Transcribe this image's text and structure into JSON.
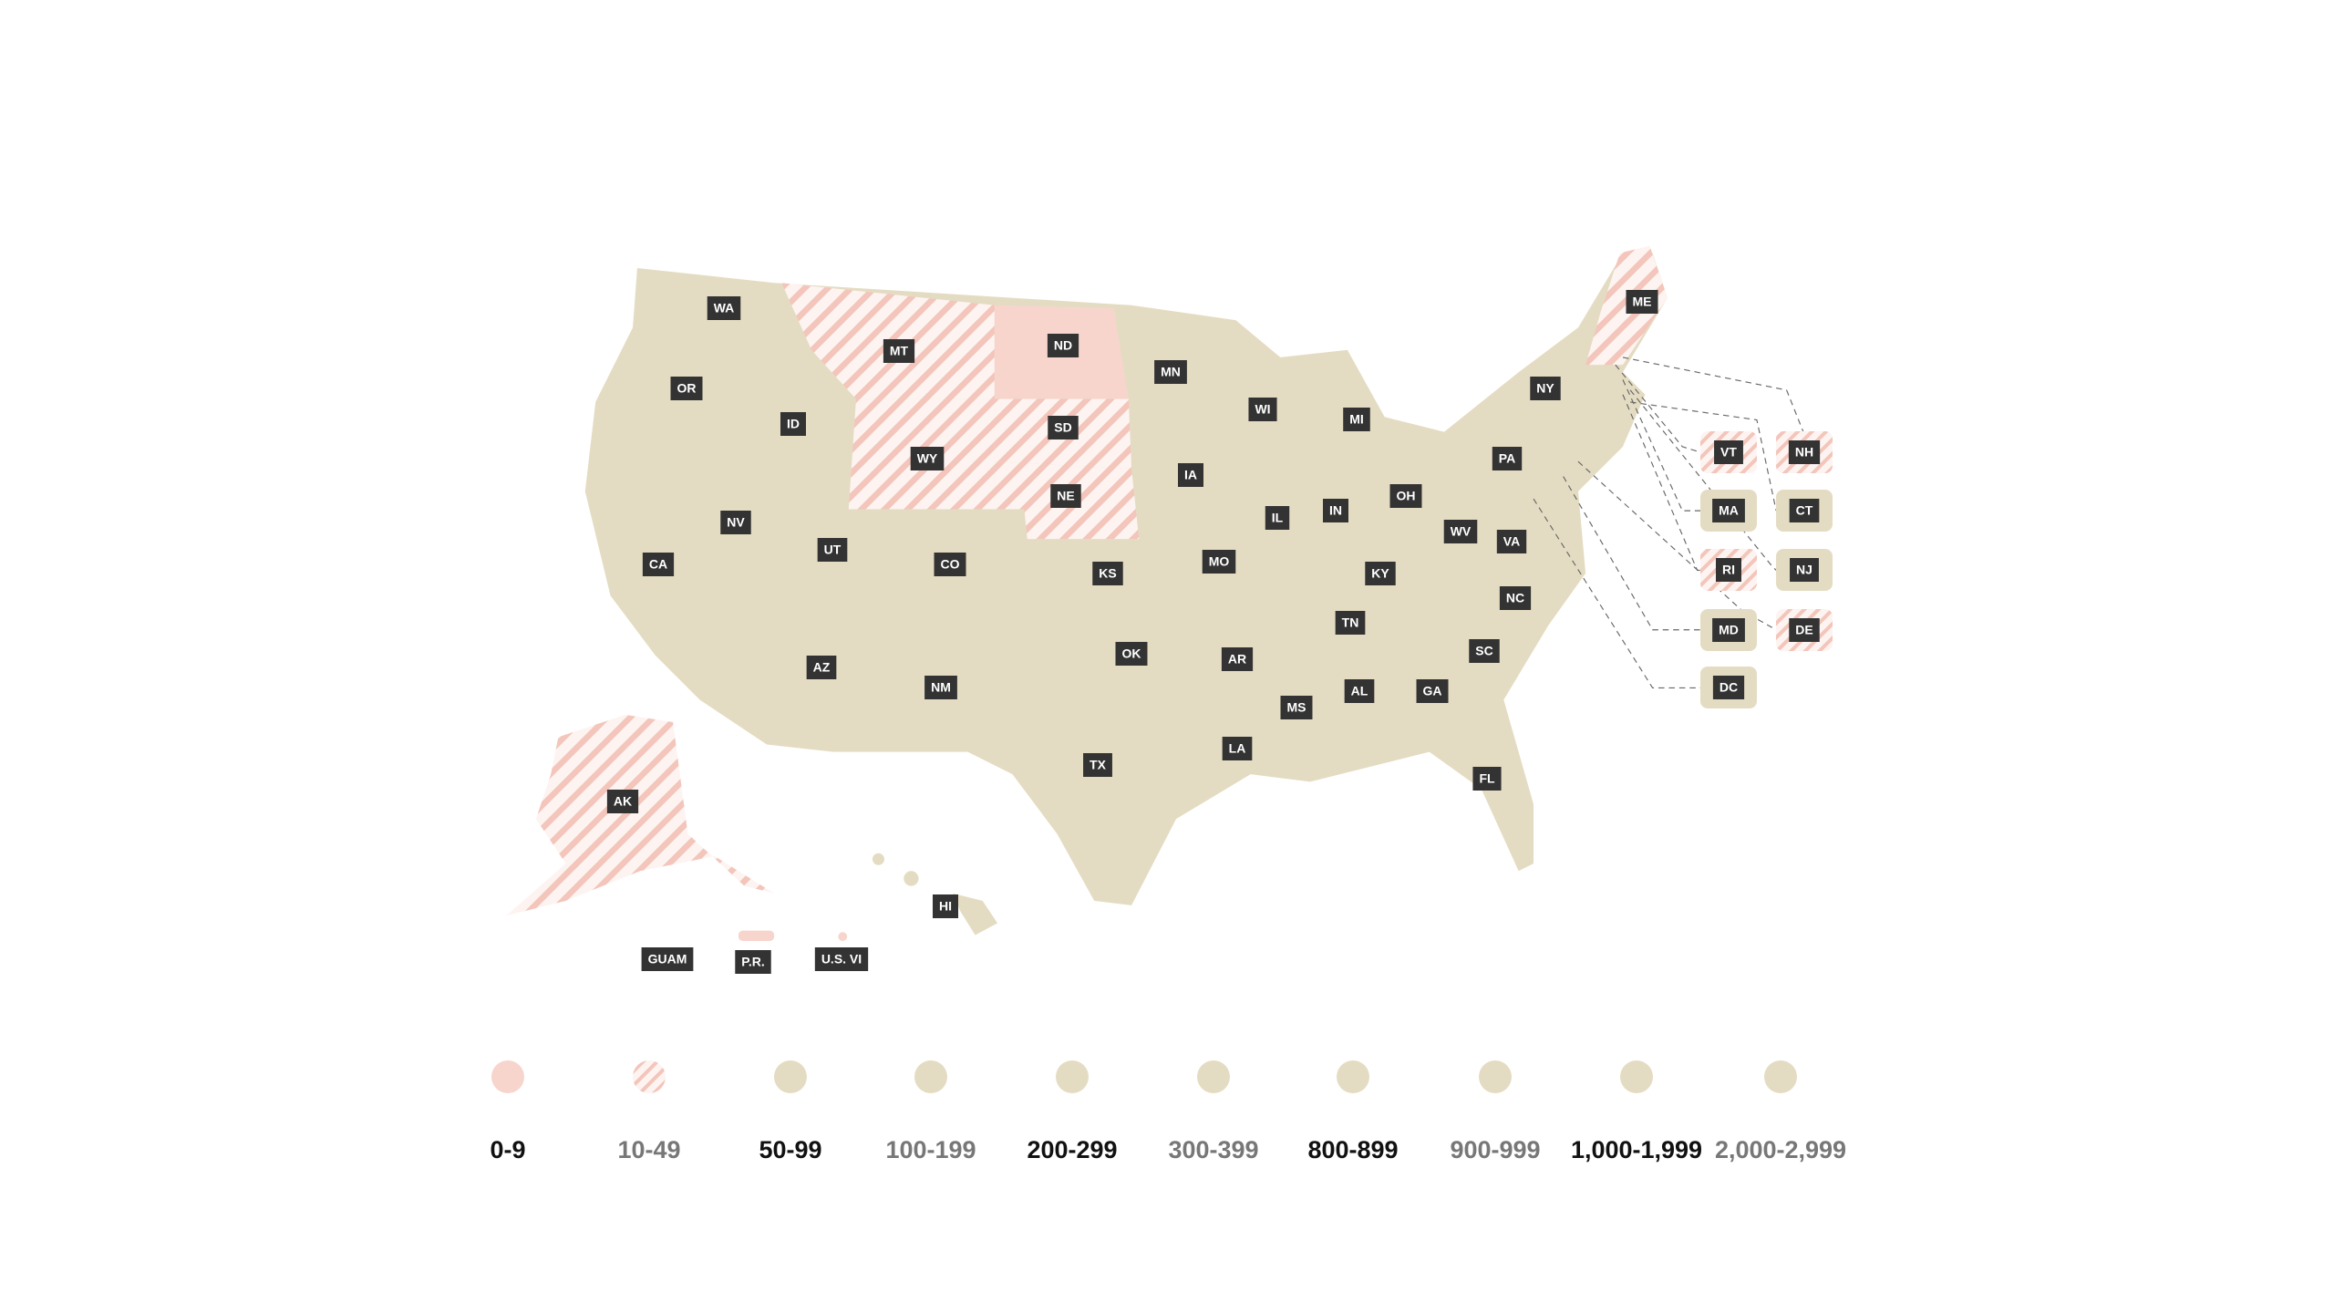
{
  "map": {
    "states": [
      {
        "label": "WA",
        "fill": "#e4dcc2"
      },
      {
        "label": "OR",
        "fill": "#e4dcc2"
      },
      {
        "label": "ID",
        "fill": "#e4dcc2"
      },
      {
        "label": "MT",
        "fill": "hatch"
      },
      {
        "label": "ND",
        "fill": "#f7d5cd"
      },
      {
        "label": "SD",
        "fill": "hatch"
      },
      {
        "label": "WY",
        "fill": "hatch"
      },
      {
        "label": "NE",
        "fill": "hatch"
      },
      {
        "label": "MN",
        "fill": "#e4dcc2"
      },
      {
        "label": "WI",
        "fill": "#e4dcc2"
      },
      {
        "label": "MI",
        "fill": "#e4dcc2"
      },
      {
        "label": "IA",
        "fill": "#e4dcc2"
      },
      {
        "label": "IL",
        "fill": "#e4dcc2"
      },
      {
        "label": "IN",
        "fill": "#e4dcc2"
      },
      {
        "label": "OH",
        "fill": "#e4dcc2"
      },
      {
        "label": "NY",
        "fill": "#e4dcc2"
      },
      {
        "label": "PA",
        "fill": "#e4dcc2"
      },
      {
        "label": "ME",
        "fill": "hatch"
      },
      {
        "label": "NV",
        "fill": "#e4dcc2"
      },
      {
        "label": "CA",
        "fill": "#e4dcc2"
      },
      {
        "label": "UT",
        "fill": "#e4dcc2"
      },
      {
        "label": "CO",
        "fill": "#e4dcc2"
      },
      {
        "label": "KS",
        "fill": "#e4dcc2"
      },
      {
        "label": "MO",
        "fill": "#e4dcc2"
      },
      {
        "label": "KY",
        "fill": "#e4dcc2"
      },
      {
        "label": "WV",
        "fill": "#e4dcc2"
      },
      {
        "label": "VA",
        "fill": "#e4dcc2"
      },
      {
        "label": "NC",
        "fill": "#e4dcc2"
      },
      {
        "label": "TN",
        "fill": "#e4dcc2"
      },
      {
        "label": "SC",
        "fill": "#e4dcc2"
      },
      {
        "label": "AZ",
        "fill": "#e4dcc2"
      },
      {
        "label": "NM",
        "fill": "#e4dcc2"
      },
      {
        "label": "OK",
        "fill": "#e4dcc2"
      },
      {
        "label": "AR",
        "fill": "#e4dcc2"
      },
      {
        "label": "MS",
        "fill": "#e4dcc2"
      },
      {
        "label": "AL",
        "fill": "#e4dcc2"
      },
      {
        "label": "GA",
        "fill": "#e4dcc2"
      },
      {
        "label": "LA",
        "fill": "#e4dcc2"
      },
      {
        "label": "TX",
        "fill": "#e4dcc2"
      },
      {
        "label": "FL",
        "fill": "#e4dcc2"
      },
      {
        "label": "AK",
        "fill": "hatch"
      },
      {
        "label": "HI",
        "fill": "#e4dcc2"
      },
      {
        "label": "GUAM",
        "fill": "#e4dcc2"
      },
      {
        "label": "P.R.",
        "fill": "#f7d5cd"
      },
      {
        "label": "U.S. VI",
        "fill": "#f7d5cd"
      },
      {
        "label": "VT",
        "fill": "hatch"
      },
      {
        "label": "NH",
        "fill": "hatch"
      },
      {
        "label": "MA",
        "fill": "#e4dcc2"
      },
      {
        "label": "CT",
        "fill": "#e4dcc2"
      },
      {
        "label": "RI",
        "fill": "hatch"
      },
      {
        "label": "NJ",
        "fill": "#e4dcc2"
      },
      {
        "label": "MD",
        "fill": "#e4dcc2"
      },
      {
        "label": "DE",
        "fill": "hatch"
      },
      {
        "label": "DC",
        "fill": "#e4dcc2"
      }
    ]
  },
  "legend": [
    {
      "label": "0-9",
      "fill": "#f7d5cd",
      "text_color": "#111111"
    },
    {
      "label": "10-49",
      "fill": "hatch",
      "text_color": "#777777"
    },
    {
      "label": "50-99",
      "fill": "#e4dcc2",
      "text_color": "#111111"
    },
    {
      "label": "100-199",
      "fill": "#e4dcc2",
      "text_color": "#777777"
    },
    {
      "label": "200-299",
      "fill": "#e4dcc2",
      "text_color": "#111111"
    },
    {
      "label": "300-399",
      "fill": "#e4dcc2",
      "text_color": "#777777"
    },
    {
      "label": "800-899",
      "fill": "#e4dcc2",
      "text_color": "#111111"
    },
    {
      "label": "900-999",
      "fill": "#e4dcc2",
      "text_color": "#777777"
    },
    {
      "label": "1,000-1,999",
      "fill": "#e4dcc2",
      "text_color": "#111111"
    },
    {
      "label": "2,000-2,999",
      "fill": "#e4dcc2",
      "text_color": "#777777"
    }
  ]
}
